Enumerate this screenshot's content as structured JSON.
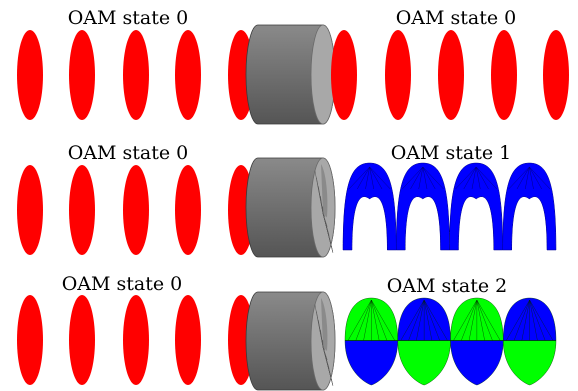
{
  "rows": [
    {
      "left_label": "OAM state 0",
      "right_label": "OAM state 0",
      "element": "flat-cylinder",
      "output": {
        "type": "planar-wavefront",
        "colors": [
          "#ff0000"
        ]
      }
    },
    {
      "left_label": "OAM state 0",
      "right_label": "OAM state 1",
      "element": "spiral-phase-plate",
      "output": {
        "type": "helical-wavefront",
        "charge": 1,
        "colors": [
          "#0000ff"
        ]
      }
    },
    {
      "left_label": "OAM state 0",
      "right_label": "OAM state 2",
      "element": "spiral-phase-plate",
      "output": {
        "type": "helical-wavefront",
        "charge": 2,
        "colors": [
          "#0000ff",
          "#00ff00"
        ]
      }
    }
  ],
  "colors": {
    "input_wave": "#ff0000",
    "cylinder_body": "#6e6e6e",
    "cylinder_face": "#a8a8a8"
  }
}
